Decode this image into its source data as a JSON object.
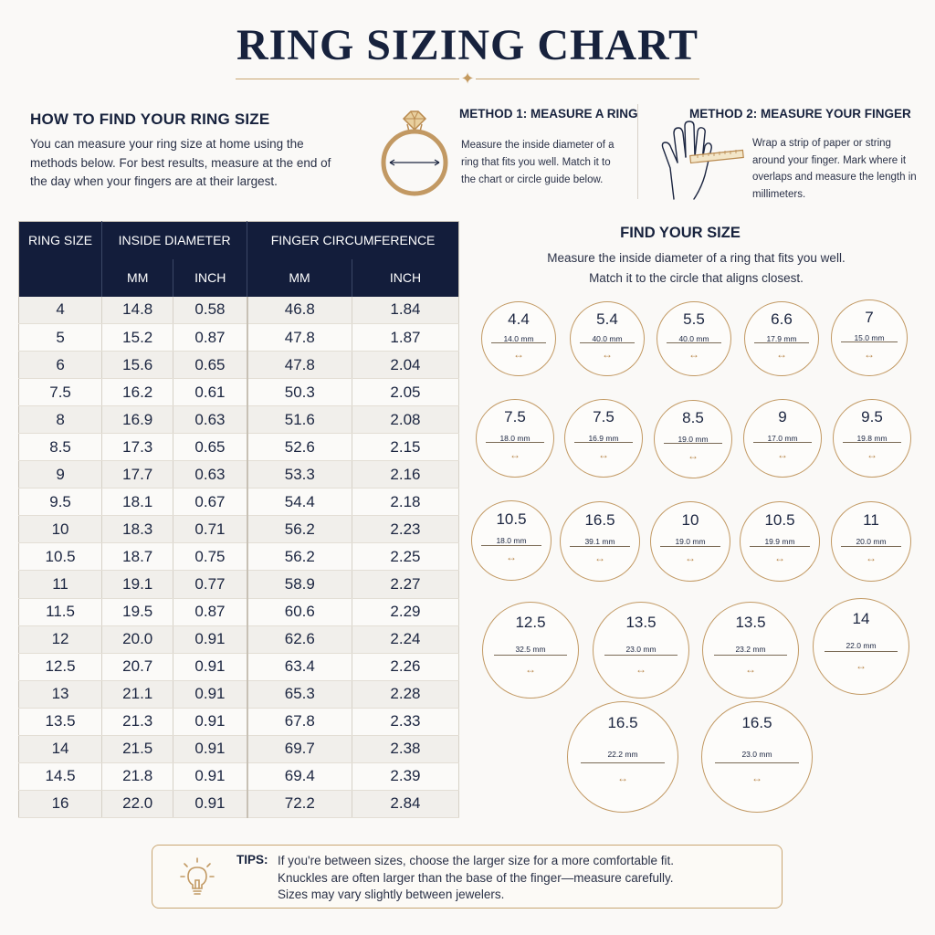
{
  "title": "RING SIZING CHART",
  "title_ornament": "✦",
  "howto": {
    "title": "HOW TO FIND YOUR RING SIZE",
    "text": "You can measure your ring size at home using the methods below. For best results, measure at the end of the day when your fingers are at their largest."
  },
  "method1": {
    "title": "METHOD 1: MEASURE A RING",
    "text": "Measure the inside diameter of a ring that fits you well. Match it to the chart or circle guide below.",
    "icon": "ring-icon"
  },
  "method2": {
    "title": "METHOD 2: MEASURE YOUR FINGER",
    "text": "Wrap a strip of paper or string around your finger. Mark where it overlaps and measure the length in millimeters.",
    "icon": "hand-measure-icon"
  },
  "table": {
    "header_ring_size": "RING SIZE",
    "header_inside_diameter": "INSIDE DIAMETER",
    "header_circumference": "FINGER CIRCUMFERENCE",
    "sub_mm": "MM",
    "sub_inch": "INCH",
    "rows": [
      {
        "size": "4",
        "d_mm": "14.8",
        "d_in": "0.58",
        "c_mm": "46.8",
        "c_in": "1.84"
      },
      {
        "size": "5",
        "d_mm": "15.2",
        "d_in": "0.87",
        "c_mm": "47.8",
        "c_in": "1.87"
      },
      {
        "size": "6",
        "d_mm": "15.6",
        "d_in": "0.65",
        "c_mm": "47.8",
        "c_in": "2.04"
      },
      {
        "size": "7.5",
        "d_mm": "16.2",
        "d_in": "0.61",
        "c_mm": "50.3",
        "c_in": "2.05"
      },
      {
        "size": "8",
        "d_mm": "16.9",
        "d_in": "0.63",
        "c_mm": "51.6",
        "c_in": "2.08"
      },
      {
        "size": "8.5",
        "d_mm": "17.3",
        "d_in": "0.65",
        "c_mm": "52.6",
        "c_in": "2.15"
      },
      {
        "size": "9",
        "d_mm": "17.7",
        "d_in": "0.63",
        "c_mm": "53.3",
        "c_in": "2.16"
      },
      {
        "size": "9.5",
        "d_mm": "18.1",
        "d_in": "0.67",
        "c_mm": "54.4",
        "c_in": "2.18"
      },
      {
        "size": "10",
        "d_mm": "18.3",
        "d_in": "0.71",
        "c_mm": "56.2",
        "c_in": "2.23"
      },
      {
        "size": "10.5",
        "d_mm": "18.7",
        "d_in": "0.75",
        "c_mm": "56.2",
        "c_in": "2.25"
      },
      {
        "size": "11",
        "d_mm": "19.1",
        "d_in": "0.77",
        "c_mm": "58.9",
        "c_in": "2.27"
      },
      {
        "size": "11.5",
        "d_mm": "19.5",
        "d_in": "0.87",
        "c_mm": "60.6",
        "c_in": "2.29"
      },
      {
        "size": "12",
        "d_mm": "20.0",
        "d_in": "0.91",
        "c_mm": "62.6",
        "c_in": "2.24"
      },
      {
        "size": "12.5",
        "d_mm": "20.7",
        "d_in": "0.91",
        "c_mm": "63.4",
        "c_in": "2.26"
      },
      {
        "size": "13",
        "d_mm": "21.1",
        "d_in": "0.91",
        "c_mm": "65.3",
        "c_in": "2.28"
      },
      {
        "size": "13.5",
        "d_mm": "21.3",
        "d_in": "0.91",
        "c_mm": "67.8",
        "c_in": "2.33"
      },
      {
        "size": "14",
        "d_mm": "21.5",
        "d_in": "0.91",
        "c_mm": "69.7",
        "c_in": "2.38"
      },
      {
        "size": "14.5",
        "d_mm": "21.8",
        "d_in": "0.91",
        "c_mm": "69.4",
        "c_in": "2.39"
      },
      {
        "size": "16",
        "d_mm": "22.0",
        "d_in": "0.91",
        "c_mm": "72.2",
        "c_in": "2.84"
      }
    ]
  },
  "find": {
    "title": "FIND YOUR SIZE",
    "text_line1": "Measure the inside diameter of a ring that fits you well.",
    "text_line2": "Match it to the circle that aligns closest.",
    "arrow_glyph": "↔",
    "circles": [
      {
        "size": "4.4",
        "mm": "14.0 mm"
      },
      {
        "size": "5.4",
        "mm": "40.0 mm"
      },
      {
        "size": "5.5",
        "mm": "40.0 mm"
      },
      {
        "size": "6.6",
        "mm": "17.9 mm"
      },
      {
        "size": "7",
        "mm": "15.0 mm"
      },
      {
        "size": "7.5",
        "mm": "18.0 mm"
      },
      {
        "size": "7.5",
        "mm": "16.9 mm"
      },
      {
        "size": "8.5",
        "mm": "19.0 mm"
      },
      {
        "size": "9",
        "mm": "17.0 mm"
      },
      {
        "size": "9.5",
        "mm": "19.8 mm"
      },
      {
        "size": "10.5",
        "mm": "18.0 mm"
      },
      {
        "size": "16.5",
        "mm": "39.1 mm"
      },
      {
        "size": "10",
        "mm": "19.0 mm"
      },
      {
        "size": "10.5",
        "mm": "19.9 mm"
      },
      {
        "size": "11",
        "mm": "20.0 mm"
      },
      {
        "size": "12.5",
        "mm": "32.5 mm"
      },
      {
        "size": "13.5",
        "mm": "23.0 mm"
      },
      {
        "size": "13.5",
        "mm": "23.2 mm"
      },
      {
        "size": "14",
        "mm": "22.0 mm"
      },
      {
        "size": "16.5",
        "mm": "22.2 mm"
      },
      {
        "size": "16.5",
        "mm": "23.0 mm"
      }
    ]
  },
  "tips": {
    "label": "TIPS:",
    "line1": "If you're between sizes, choose the larger size for a more comfortable fit.",
    "line2": "Knuckles are often larger than the base of the finger—measure carefully.",
    "line3": "Sizes may vary slightly between jewelers.",
    "icon": "lightbulb-icon"
  },
  "colors": {
    "navy": "#131d3b",
    "gold": "#c29963",
    "background": "#faf9f7"
  }
}
